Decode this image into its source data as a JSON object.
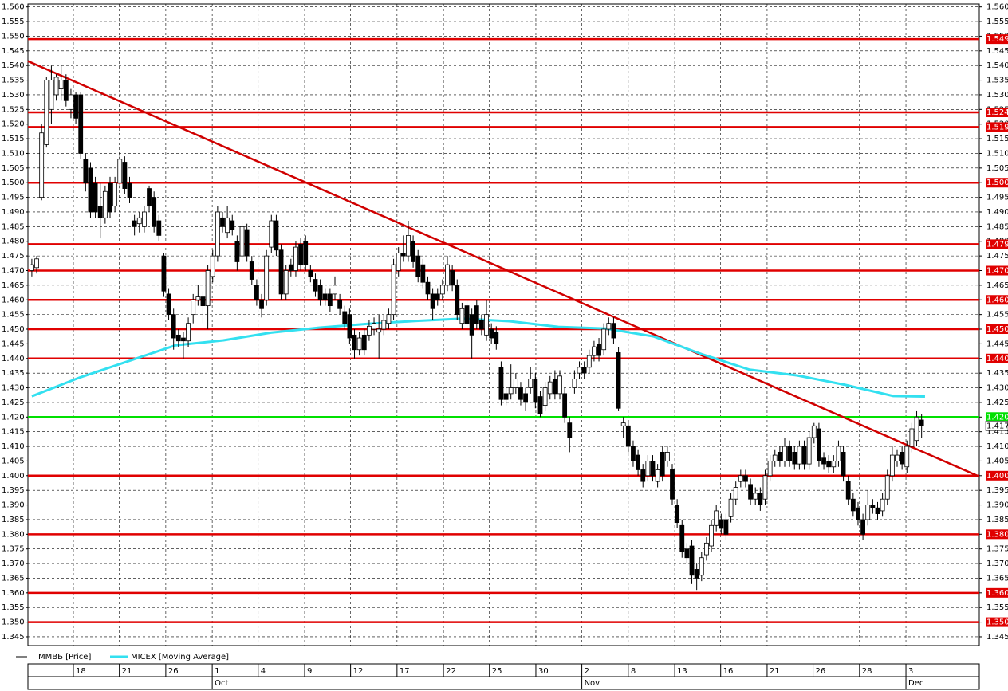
{
  "chart_data": {
    "type": "candlestick",
    "legend": [
      {
        "name": "ММВБ [Price]",
        "color": "#000000"
      },
      {
        "name": "MICEX [Moving Average]",
        "color": "#33e0f0"
      }
    ],
    "ylim": [
      1.342,
      1.561
    ],
    "yticks": [
      1.345,
      {
        "value": 1.35,
        "label": "1.350"
      },
      1.355,
      {
        "value": 1.36,
        "label": "1.360"
      },
      1.365,
      {
        "value": 1.37,
        "label": "1.370"
      },
      1.375,
      {
        "value": 1.38,
        "label": "1.380"
      },
      1.385,
      {
        "value": 1.39,
        "label": "1.390"
      },
      1.395,
      {
        "value": 1.4,
        "label": "1.400"
      },
      1.405,
      {
        "value": 1.41,
        "label": "1.410"
      },
      1.415,
      {
        "value": 1.42,
        "label": "1.420"
      },
      1.425,
      {
        "value": 1.43,
        "label": "1.430"
      },
      1.435,
      {
        "value": 1.44,
        "label": "1.440"
      },
      1.445,
      {
        "value": 1.45,
        "label": "1.450"
      },
      1.455,
      {
        "value": 1.46,
        "label": "1.460"
      },
      1.465,
      {
        "value": 1.47,
        "label": "1.470"
      },
      1.475,
      {
        "value": 1.48,
        "label": "1.480"
      },
      1.485,
      {
        "value": 1.49,
        "label": "1.490"
      },
      1.495,
      {
        "value": 1.5,
        "label": "1.500"
      },
      1.505,
      {
        "value": 1.51,
        "label": "1.510"
      },
      1.515,
      {
        "value": 1.52,
        "label": "1.520"
      },
      1.525,
      {
        "value": 1.53,
        "label": "1.530"
      },
      1.535,
      {
        "value": 1.54,
        "label": "1.540"
      },
      1.545,
      {
        "value": 1.55,
        "label": "1.550"
      },
      1.555,
      {
        "value": 1.56,
        "label": "1.560"
      }
    ],
    "xlim": [
      -0.8,
      193.8
    ],
    "xticks": [
      {
        "value": 8.5,
        "label": "18"
      },
      {
        "value": 17.9,
        "label": "21"
      },
      {
        "value": 27.4,
        "label": "26"
      },
      {
        "value": 36.9,
        "label": "1"
      },
      {
        "value": 46.3,
        "label": "4"
      },
      {
        "value": 55.8,
        "label": "9"
      },
      {
        "value": 65.2,
        "label": "12"
      },
      {
        "value": 74.7,
        "label": "17"
      },
      {
        "value": 84.2,
        "label": "22"
      },
      {
        "value": 93.6,
        "label": "25"
      },
      {
        "value": 103.1,
        "label": "30"
      },
      {
        "value": 112.5,
        "label": "2"
      },
      {
        "value": 122.0,
        "label": "8"
      },
      {
        "value": 131.5,
        "label": "13"
      },
      {
        "value": 140.9,
        "label": "16"
      },
      {
        "value": 150.4,
        "label": "21"
      },
      {
        "value": 159.8,
        "label": "26"
      },
      {
        "value": 169.3,
        "label": "28"
      },
      {
        "value": 178.8,
        "label": "3"
      }
    ],
    "months": [
      {
        "value": 36.9,
        "label": "Oct"
      },
      {
        "value": 112.5,
        "label": "Nov"
      },
      {
        "value": 178.8,
        "label": "Dec"
      }
    ],
    "grid": true,
    "levels": [
      {
        "value": 1.549,
        "color": "#e00000"
      },
      {
        "value": 1.524,
        "color": "#e00000"
      },
      {
        "value": 1.519,
        "color": "#e00000"
      },
      {
        "value": {
          "value": 1.5,
          "label": "1.500"
        },
        "color": "#e00000"
      },
      {
        "value": 1.479,
        "color": "#e00000"
      },
      {
        "value": {
          "value": 1.47,
          "label": "1.470"
        },
        "color": "#e00000"
      },
      {
        "value": {
          "value": 1.46,
          "label": "1.460"
        },
        "color": "#e00000"
      },
      {
        "value": {
          "value": 1.45,
          "label": "1.450"
        },
        "color": "#e00000"
      },
      {
        "value": {
          "value": 1.44,
          "label": "1.440"
        },
        "color": "#e00000"
      },
      {
        "value": {
          "value": 1.42,
          "label": "1.420"
        },
        "color": "#00e000"
      },
      {
        "value": {
          "value": 1.4,
          "label": "1.400"
        },
        "color": "#e00000"
      },
      {
        "value": {
          "value": 1.38,
          "label": "1.380"
        },
        "color": "#e00000"
      },
      {
        "value": {
          "value": 1.36,
          "label": "1.360"
        },
        "color": "#e00000"
      },
      {
        "value": {
          "value": 1.35,
          "label": "1.350"
        },
        "color": "#e00000"
      }
    ],
    "trendline": {
      "x": [
        -0.8,
        193.8
      ],
      "y": [
        1.5415,
        1.3997
      ],
      "color": "#d00000"
    },
    "moving_average": {
      "x": [
        0,
        9.8,
        19.6,
        29.4,
        39.2,
        48.9,
        58.7,
        68.5,
        78.3,
        88.1,
        97.9,
        107.7,
        117.5,
        127.2,
        137,
        146.8,
        156.6,
        166.4,
        176.2,
        182.7
      ],
      "values": [
        1.4271,
        1.4335,
        1.439,
        1.4445,
        1.4462,
        1.4488,
        1.4505,
        1.4518,
        1.4528,
        1.4536,
        1.4527,
        1.4508,
        1.4502,
        1.4475,
        1.4415,
        1.4362,
        1.4342,
        1.431,
        1.4272,
        1.427
      ],
      "color": "#33e0f0"
    },
    "ohlc": [
      [
        1.47,
        1.474,
        1.468,
        1.472
      ],
      [
        1.471,
        1.475,
        1.469,
        1.474
      ],
      [
        1.495,
        1.52,
        1.494,
        1.517
      ],
      [
        1.513,
        1.536,
        1.512,
        1.535
      ],
      [
        1.525,
        1.54,
        1.52,
        1.535
      ],
      [
        1.53,
        1.537,
        1.528,
        1.536
      ],
      [
        1.532,
        1.54,
        1.528,
        1.535
      ],
      [
        1.535,
        1.537,
        1.526,
        1.528
      ],
      [
        1.525,
        1.532,
        1.522,
        1.53
      ],
      [
        1.53,
        1.531,
        1.52,
        1.522
      ],
      [
        1.53,
        1.531,
        1.508,
        1.51
      ],
      [
        1.508,
        1.51,
        1.497,
        1.5
      ],
      [
        1.505,
        1.507,
        1.488,
        1.49
      ],
      [
        1.5,
        1.502,
        1.488,
        1.49
      ],
      [
        1.492,
        1.5,
        1.481,
        1.488
      ],
      [
        1.488,
        1.499,
        1.486,
        1.497
      ],
      [
        1.5,
        1.502,
        1.488,
        1.49
      ],
      [
        1.492,
        1.502,
        1.49,
        1.5
      ],
      [
        1.5,
        1.51,
        1.498,
        1.508
      ],
      [
        1.507,
        1.509,
        1.496,
        1.498
      ],
      [
        1.5,
        1.502,
        1.493,
        1.495
      ],
      [
        1.487,
        1.489,
        1.482,
        1.485
      ],
      [
        1.486,
        1.49,
        1.483,
        1.488
      ],
      [
        1.485,
        1.492,
        1.483,
        1.49
      ],
      [
        1.498,
        1.499,
        1.49,
        1.492
      ],
      [
        1.495,
        1.497,
        1.483,
        1.485
      ],
      [
        1.487,
        1.489,
        1.48,
        1.482
      ],
      [
        1.475,
        1.476,
        1.461,
        1.463
      ],
      [
        1.462,
        1.464,
        1.453,
        1.455
      ],
      [
        1.455,
        1.457,
        1.443,
        1.447
      ],
      [
        1.448,
        1.45,
        1.444,
        1.446
      ],
      [
        1.447,
        1.449,
        1.44,
        1.446
      ],
      [
        1.446,
        1.454,
        1.444,
        1.452
      ],
      [
        1.455,
        1.462,
        1.452,
        1.46
      ],
      [
        1.46,
        1.465,
        1.458,
        1.461
      ],
      [
        1.461,
        1.463,
        1.452,
        1.458
      ],
      [
        1.458,
        1.472,
        1.45,
        1.47
      ],
      [
        1.468,
        1.477,
        1.466,
        1.475
      ],
      [
        1.475,
        1.492,
        1.473,
        1.49
      ],
      [
        1.488,
        1.49,
        1.483,
        1.485
      ],
      [
        1.483,
        1.492,
        1.481,
        1.488
      ],
      [
        1.487,
        1.489,
        1.482,
        1.484
      ],
      [
        1.48,
        1.482,
        1.47,
        1.473
      ],
      [
        1.475,
        1.487,
        1.473,
        1.485
      ],
      [
        1.484,
        1.486,
        1.473,
        1.475
      ],
      [
        1.473,
        1.475,
        1.465,
        1.467
      ],
      [
        1.465,
        1.467,
        1.458,
        1.46
      ],
      [
        1.46,
        1.462,
        1.454,
        1.457
      ],
      [
        1.46,
        1.477,
        1.458,
        1.475
      ],
      [
        1.478,
        1.489,
        1.476,
        1.487
      ],
      [
        1.487,
        1.489,
        1.475,
        1.477
      ],
      [
        1.477,
        1.479,
        1.46,
        1.462
      ],
      [
        1.462,
        1.472,
        1.46,
        1.47
      ],
      [
        1.472,
        1.474,
        1.468,
        1.47
      ],
      [
        1.47,
        1.48,
        1.468,
        1.478
      ],
      [
        1.479,
        1.481,
        1.47,
        1.472
      ],
      [
        1.48,
        1.482,
        1.47,
        1.472
      ],
      [
        1.47,
        1.472,
        1.466,
        1.468
      ],
      [
        1.467,
        1.469,
        1.461,
        1.463
      ],
      [
        1.465,
        1.467,
        1.458,
        1.46
      ],
      [
        1.462,
        1.464,
        1.458,
        1.46
      ],
      [
        1.462,
        1.464,
        1.456,
        1.458
      ],
      [
        1.462,
        1.468,
        1.46,
        1.465
      ],
      [
        1.46,
        1.462,
        1.455,
        1.457
      ],
      [
        1.456,
        1.458,
        1.45,
        1.452
      ],
      [
        1.455,
        1.457,
        1.445,
        1.447
      ],
      [
        1.448,
        1.45,
        1.44,
        1.443
      ],
      [
        1.443,
        1.449,
        1.441,
        1.447
      ],
      [
        1.448,
        1.45,
        1.441,
        1.443
      ],
      [
        1.448,
        1.453,
        1.446,
        1.451
      ],
      [
        1.45,
        1.454,
        1.448,
        1.452
      ],
      [
        1.449,
        1.455,
        1.44,
        1.45
      ],
      [
        1.45,
        1.455,
        1.448,
        1.453
      ],
      [
        1.452,
        1.457,
        1.45,
        1.455
      ],
      [
        1.455,
        1.474,
        1.453,
        1.472
      ],
      [
        1.47,
        1.478,
        1.468,
        1.476
      ],
      [
        1.476,
        1.482,
        1.473,
        1.475
      ],
      [
        1.475,
        1.487,
        1.473,
        1.482
      ],
      [
        1.48,
        1.482,
        1.471,
        1.473
      ],
      [
        1.475,
        1.477,
        1.466,
        1.468
      ],
      [
        1.472,
        1.474,
        1.464,
        1.466
      ],
      [
        1.466,
        1.468,
        1.46,
        1.462
      ],
      [
        1.462,
        1.464,
        1.453,
        1.457
      ],
      [
        1.462,
        1.464,
        1.458,
        1.46
      ],
      [
        1.462,
        1.467,
        1.46,
        1.465
      ],
      [
        1.465,
        1.475,
        1.463,
        1.472
      ],
      [
        1.47,
        1.472,
        1.463,
        1.465
      ],
      [
        1.465,
        1.467,
        1.453,
        1.455
      ],
      [
        1.452,
        1.459,
        1.45,
        1.457
      ],
      [
        1.458,
        1.46,
        1.45,
        1.452
      ],
      [
        1.455,
        1.457,
        1.44,
        1.448
      ],
      [
        1.458,
        1.46,
        1.45,
        1.452
      ],
      [
        1.453,
        1.455,
        1.448,
        1.45
      ],
      [
        1.448,
        1.46,
        1.446,
        1.455
      ],
      [
        1.45,
        1.452,
        1.445,
        1.447
      ],
      [
        1.449,
        1.451,
        1.443,
        1.445
      ],
      [
        1.437,
        1.439,
        1.424,
        1.426
      ],
      [
        1.428,
        1.43,
        1.424,
        1.426
      ],
      [
        1.428,
        1.438,
        1.426,
        1.43
      ],
      [
        1.43,
        1.435,
        1.428,
        1.433
      ],
      [
        1.43,
        1.432,
        1.424,
        1.426
      ],
      [
        1.428,
        1.43,
        1.422,
        1.425
      ],
      [
        1.43,
        1.437,
        1.428,
        1.433
      ],
      [
        1.433,
        1.435,
        1.423,
        1.425
      ],
      [
        1.427,
        1.429,
        1.42,
        1.421
      ],
      [
        1.424,
        1.432,
        1.422,
        1.43
      ],
      [
        1.428,
        1.434,
        1.426,
        1.432
      ],
      [
        1.433,
        1.436,
        1.426,
        1.428
      ],
      [
        1.428,
        1.436,
        1.426,
        1.434
      ],
      [
        1.428,
        1.43,
        1.418,
        1.42
      ],
      [
        1.418,
        1.42,
        1.408,
        1.413
      ],
      [
        1.43,
        1.436,
        1.428,
        1.433
      ],
      [
        1.435,
        1.439,
        1.433,
        1.437
      ],
      [
        1.437,
        1.439,
        1.433,
        1.435
      ],
      [
        1.437,
        1.443,
        1.435,
        1.441
      ],
      [
        1.441,
        1.446,
        1.439,
        1.444
      ],
      [
        1.445,
        1.447,
        1.439,
        1.441
      ],
      [
        1.443,
        1.452,
        1.441,
        1.45
      ],
      [
        1.45,
        1.454,
        1.448,
        1.452
      ],
      [
        1.452,
        1.454,
        1.445,
        1.447
      ],
      [
        1.442,
        1.444,
        1.422,
        1.423
      ],
      [
        1.417,
        1.42,
        1.413,
        1.418
      ],
      [
        1.417,
        1.419,
        1.408,
        1.41
      ],
      [
        1.41,
        1.412,
        1.403,
        1.405
      ],
      [
        1.407,
        1.409,
        1.4,
        1.402
      ],
      [
        1.402,
        1.404,
        1.396,
        1.398
      ],
      [
        1.4,
        1.407,
        1.398,
        1.405
      ],
      [
        1.405,
        1.407,
        1.398,
        1.4
      ],
      [
        1.398,
        1.404,
        1.396,
        1.402
      ],
      [
        1.408,
        1.41,
        1.398,
        1.4
      ],
      [
        1.405,
        1.41,
        1.403,
        1.408
      ],
      [
        1.402,
        1.404,
        1.39,
        1.392
      ],
      [
        1.39,
        1.392,
        1.382,
        1.384
      ],
      [
        1.383,
        1.385,
        1.372,
        1.374
      ],
      [
        1.375,
        1.377,
        1.37,
        1.372
      ],
      [
        1.376,
        1.378,
        1.363,
        1.366
      ],
      [
        1.368,
        1.37,
        1.361,
        1.365
      ],
      [
        1.366,
        1.374,
        1.364,
        1.372
      ],
      [
        1.373,
        1.379,
        1.371,
        1.377
      ],
      [
        1.376,
        1.385,
        1.374,
        1.383
      ],
      [
        1.383,
        1.39,
        1.381,
        1.388
      ],
      [
        1.385,
        1.387,
        1.38,
        1.382
      ],
      [
        1.385,
        1.387,
        1.378,
        1.38
      ],
      [
        1.386,
        1.394,
        1.384,
        1.392
      ],
      [
        1.392,
        1.398,
        1.39,
        1.396
      ],
      [
        1.398,
        1.402,
        1.396,
        1.4
      ],
      [
        1.4,
        1.402,
        1.396,
        1.398
      ],
      [
        1.397,
        1.399,
        1.39,
        1.392
      ],
      [
        1.392,
        1.396,
        1.39,
        1.394
      ],
      [
        1.394,
        1.396,
        1.388,
        1.39
      ],
      [
        1.392,
        1.402,
        1.39,
        1.4
      ],
      [
        1.4,
        1.407,
        1.398,
        1.405
      ],
      [
        1.405,
        1.409,
        1.403,
        1.407
      ],
      [
        1.408,
        1.41,
        1.403,
        1.405
      ],
      [
        1.405,
        1.413,
        1.403,
        1.41
      ],
      [
        1.41,
        1.412,
        1.403,
        1.405
      ],
      [
        1.408,
        1.41,
        1.402,
        1.404
      ],
      [
        1.404,
        1.412,
        1.402,
        1.41
      ],
      [
        1.41,
        1.412,
        1.402,
        1.404
      ],
      [
        1.404,
        1.415,
        1.402,
        1.413
      ],
      [
        1.413,
        1.418,
        1.411,
        1.417
      ],
      [
        1.416,
        1.418,
        1.403,
        1.405
      ],
      [
        1.406,
        1.408,
        1.402,
        1.404
      ],
      [
        1.405,
        1.407,
        1.401,
        1.403
      ],
      [
        1.403,
        1.407,
        1.401,
        1.405
      ],
      [
        1.405,
        1.412,
        1.403,
        1.41
      ],
      [
        1.408,
        1.41,
        1.398,
        1.4
      ],
      [
        1.398,
        1.4,
        1.39,
        1.392
      ],
      [
        1.392,
        1.394,
        1.386,
        1.388
      ],
      [
        1.389,
        1.391,
        1.383,
        1.385
      ],
      [
        1.385,
        1.387,
        1.378,
        1.38
      ],
      [
        1.385,
        1.395,
        1.383,
        1.39
      ],
      [
        1.39,
        1.392,
        1.387,
        1.389
      ],
      [
        1.389,
        1.391,
        1.385,
        1.387
      ],
      [
        1.388,
        1.394,
        1.386,
        1.392
      ],
      [
        1.392,
        1.402,
        1.39,
        1.4
      ],
      [
        1.4,
        1.41,
        1.398,
        1.407
      ],
      [
        1.405,
        1.409,
        1.403,
        1.407
      ],
      [
        1.408,
        1.41,
        1.402,
        1.404
      ],
      [
        1.403,
        1.412,
        1.401,
        1.41
      ],
      [
        1.41,
        1.418,
        1.408,
        1.416
      ],
      [
        1.412,
        1.422,
        1.41,
        1.42
      ],
      [
        1.419,
        1.421,
        1.413,
        1.417
      ]
    ]
  }
}
